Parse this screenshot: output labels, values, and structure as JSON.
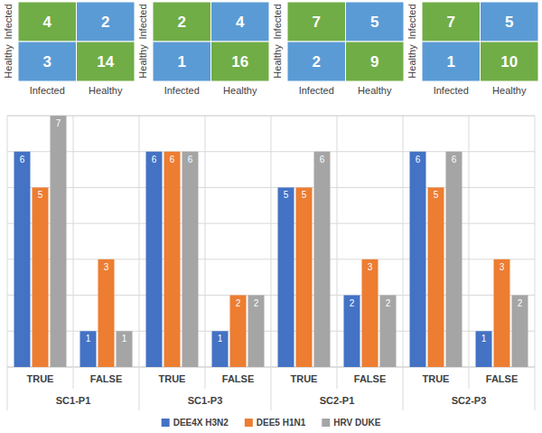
{
  "chart_data": [
    {
      "type": "heatmap",
      "categories": [
        "Infected",
        "Healthy"
      ],
      "y_categories": [
        "Infected",
        "Healthy"
      ],
      "cells": [
        [
          4,
          2
        ],
        [
          3,
          14
        ]
      ],
      "colors": [
        [
          "#70ad47",
          "#5b9bd5"
        ],
        [
          "#5b9bd5",
          "#70ad47"
        ]
      ],
      "data_labels": true
    },
    {
      "type": "heatmap",
      "categories": [
        "Infected",
        "Healthy"
      ],
      "y_categories": [
        "Infected",
        "Healthy"
      ],
      "cells": [
        [
          2,
          4
        ],
        [
          1,
          16
        ]
      ],
      "colors": [
        [
          "#70ad47",
          "#5b9bd5"
        ],
        [
          "#5b9bd5",
          "#70ad47"
        ]
      ],
      "data_labels": true
    },
    {
      "type": "heatmap",
      "categories": [
        "Infected",
        "Healthy"
      ],
      "y_categories": [
        "Infected",
        "Healthy"
      ],
      "cells": [
        [
          7,
          5
        ],
        [
          2,
          9
        ]
      ],
      "colors": [
        [
          "#70ad47",
          "#5b9bd5"
        ],
        [
          "#5b9bd5",
          "#70ad47"
        ]
      ],
      "data_labels": true
    },
    {
      "type": "heatmap",
      "categories": [
        "Infected",
        "Healthy"
      ],
      "y_categories": [
        "Infected",
        "Healthy"
      ],
      "cells": [
        [
          7,
          5
        ],
        [
          1,
          10
        ]
      ],
      "colors": [
        [
          "#70ad47",
          "#5b9bd5"
        ],
        [
          "#5b9bd5",
          "#70ad47"
        ]
      ],
      "data_labels": true
    },
    {
      "type": "bar",
      "categories": [
        "TRUE",
        "FALSE",
        "TRUE",
        "FALSE",
        "TRUE",
        "FALSE",
        "TRUE",
        "FALSE"
      ],
      "groups": [
        "SC1-P1",
        "SC1-P3",
        "SC2-P1",
        "SC2-P3"
      ],
      "series": [
        {
          "name": "DEE4X H3N2",
          "color": "#4472c4",
          "values": [
            6,
            1,
            6,
            1,
            5,
            2,
            6,
            1
          ]
        },
        {
          "name": "DEE5 H1N1",
          "color": "#ed7d31",
          "values": [
            5,
            3,
            6,
            2,
            5,
            3,
            5,
            3
          ]
        },
        {
          "name": "HRV DUKE",
          "color": "#a5a5a5",
          "values": [
            7,
            1,
            6,
            2,
            6,
            2,
            6,
            2
          ]
        }
      ],
      "ylim": [
        0,
        7
      ],
      "yticks": [
        0,
        1,
        2,
        3,
        4,
        5,
        6,
        7
      ],
      "grid": true,
      "data_labels": true,
      "tick_labels": "x",
      "legend": "bottom"
    }
  ]
}
